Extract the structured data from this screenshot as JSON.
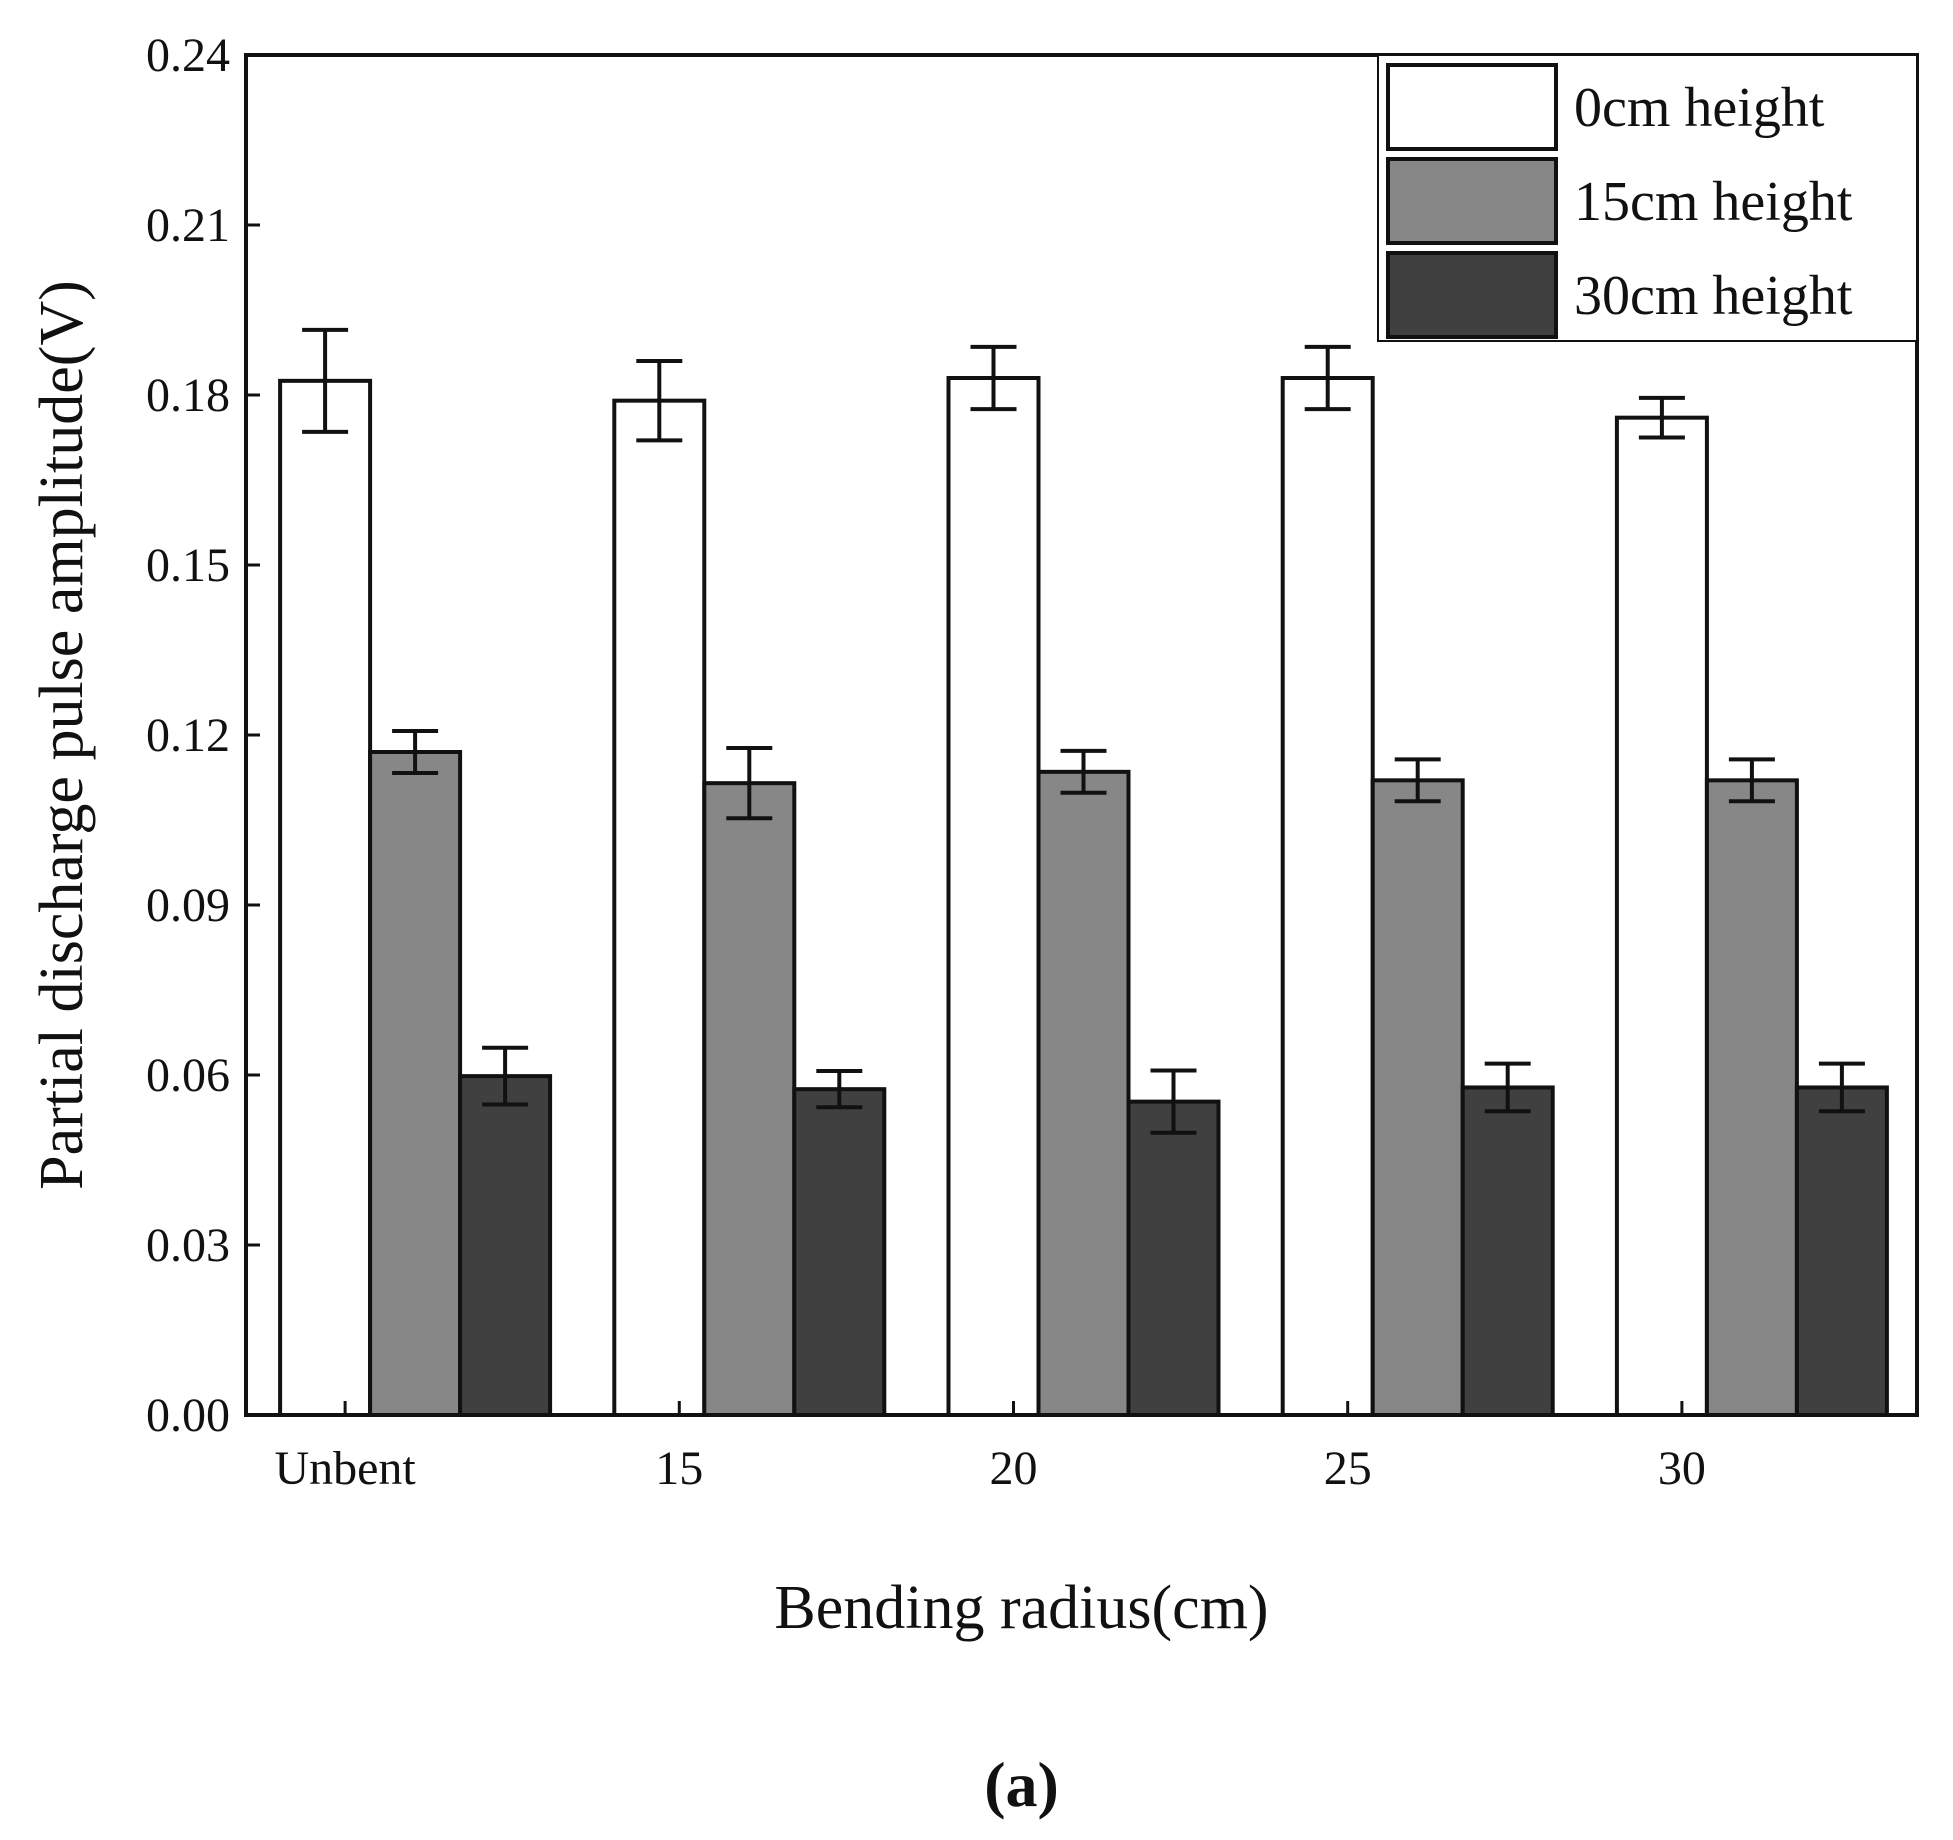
{
  "chart_data": {
    "type": "bar",
    "title": "",
    "panel_label": "(a)",
    "xlabel": "Bending radius(cm)",
    "ylabel": "Partial discharge pulse amplitude(V)",
    "categories": [
      "Unbent",
      "15",
      "20",
      "25",
      "30"
    ],
    "ylim": [
      0,
      0.24
    ],
    "yticks": [
      "0.00",
      "0.03",
      "0.06",
      "0.09",
      "0.12",
      "0.15",
      "0.18",
      "0.21",
      "0.24"
    ],
    "grid": false,
    "legend_position": "top-right",
    "series": [
      {
        "name": "0cm height",
        "color": "#ffffff",
        "values": [
          0.1825,
          0.179,
          0.183,
          0.183,
          0.176
        ],
        "errors": [
          0.009,
          0.007,
          0.0055,
          0.0055,
          0.0035
        ]
      },
      {
        "name": "15cm height",
        "color": "#878787",
        "values": [
          0.117,
          0.1115,
          0.1135,
          0.112,
          0.112
        ],
        "errors": [
          0.0037,
          0.0062,
          0.0037,
          0.0037,
          0.0037
        ]
      },
      {
        "name": "30cm height",
        "color": "#404040",
        "values": [
          0.0598,
          0.0575,
          0.0553,
          0.0578,
          0.0578
        ],
        "errors": [
          0.005,
          0.0032,
          0.0055,
          0.0042,
          0.0042
        ]
      }
    ]
  }
}
